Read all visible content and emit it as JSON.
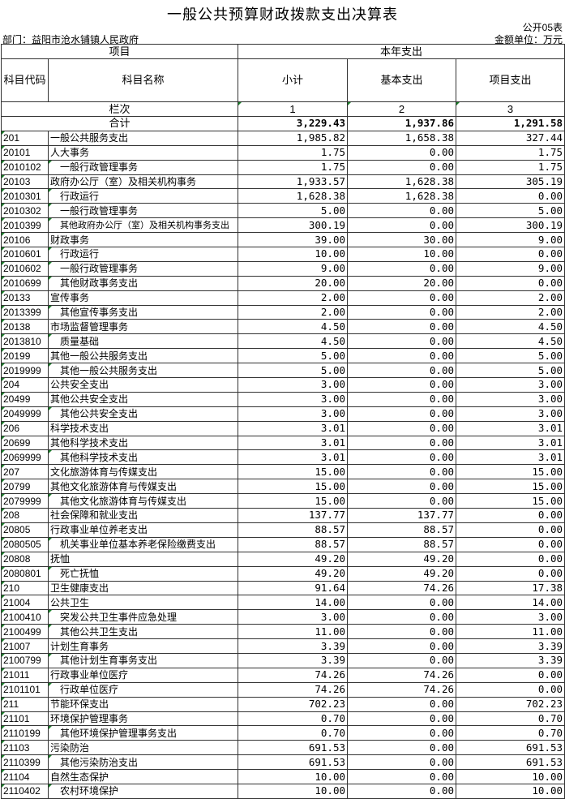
{
  "title": "一般公共预算财政拨款支出决算表",
  "form_no": "公开05表",
  "department": "部门：益阳市沧水铺镇人民政府",
  "unit": "金额单位：万元",
  "header": {
    "item": "项目",
    "current_year": "本年支出",
    "code": "科目代码",
    "name": "科目名称",
    "subtotal": "小计",
    "basic": "基本支出",
    "project": "项目支出",
    "column_label": "栏次",
    "col1": "1",
    "col2": "2",
    "col3": "3"
  },
  "total": {
    "label": "合计",
    "subtotal": "3,229.43",
    "basic": "1,937.86",
    "project": "1,291.58"
  },
  "rows": [
    [
      "201",
      "一般公共服务支出",
      "1,985.82",
      "1,658.38",
      "327.44"
    ],
    [
      "20101",
      "人大事务",
      "1.75",
      "0.00",
      "1.75"
    ],
    [
      "2010102",
      "一般行政管理事务",
      "1.75",
      "0.00",
      "1.75"
    ],
    [
      "20103",
      "政府办公厅（室）及相关机构事务",
      "1,933.57",
      "1,628.38",
      "305.19"
    ],
    [
      "2010301",
      "行政运行",
      "1,628.38",
      "1,628.38",
      "0.00"
    ],
    [
      "2010302",
      "一般行政管理事务",
      "5.00",
      "0.00",
      "5.00"
    ],
    [
      "2010399",
      "其他政府办公厅（室）及相关机构事务支出",
      "300.19",
      "0.00",
      "300.19"
    ],
    [
      "20106",
      "财政事务",
      "39.00",
      "30.00",
      "9.00"
    ],
    [
      "2010601",
      "行政运行",
      "10.00",
      "10.00",
      "0.00"
    ],
    [
      "2010602",
      "一般行政管理事务",
      "9.00",
      "0.00",
      "9.00"
    ],
    [
      "2010699",
      "其他财政事务支出",
      "20.00",
      "20.00",
      "0.00"
    ],
    [
      "20133",
      "宣传事务",
      "2.00",
      "0.00",
      "2.00"
    ],
    [
      "2013399",
      "其他宣传事务支出",
      "2.00",
      "0.00",
      "2.00"
    ],
    [
      "20138",
      "市场监督管理事务",
      "4.50",
      "0.00",
      "4.50"
    ],
    [
      "2013810",
      "质量基础",
      "4.50",
      "0.00",
      "4.50"
    ],
    [
      "20199",
      "其他一般公共服务支出",
      "5.00",
      "0.00",
      "5.00"
    ],
    [
      "2019999",
      "其他一般公共服务支出",
      "5.00",
      "0.00",
      "5.00"
    ],
    [
      "204",
      "公共安全支出",
      "3.00",
      "0.00",
      "3.00"
    ],
    [
      "20499",
      "其他公共安全支出",
      "3.00",
      "0.00",
      "3.00"
    ],
    [
      "2049999",
      "其他公共安全支出",
      "3.00",
      "0.00",
      "3.00"
    ],
    [
      "206",
      "科学技术支出",
      "3.01",
      "0.00",
      "3.01"
    ],
    [
      "20699",
      "其他科学技术支出",
      "3.01",
      "0.00",
      "3.01"
    ],
    [
      "2069999",
      "其他科学技术支出",
      "3.01",
      "0.00",
      "3.01"
    ],
    [
      "207",
      "文化旅游体育与传媒支出",
      "15.00",
      "0.00",
      "15.00"
    ],
    [
      "20799",
      "其他文化旅游体育与传媒支出",
      "15.00",
      "0.00",
      "15.00"
    ],
    [
      "2079999",
      "其他文化旅游体育与传媒支出",
      "15.00",
      "0.00",
      "15.00"
    ],
    [
      "208",
      "社会保障和就业支出",
      "137.77",
      "137.77",
      "0.00"
    ],
    [
      "20805",
      "行政事业单位养老支出",
      "88.57",
      "88.57",
      "0.00"
    ],
    [
      "2080505",
      "机关事业单位基本养老保险缴费支出",
      "88.57",
      "88.57",
      "0.00"
    ],
    [
      "20808",
      "抚恤",
      "49.20",
      "49.20",
      "0.00"
    ],
    [
      "2080801",
      "死亡抚恤",
      "49.20",
      "49.20",
      "0.00"
    ],
    [
      "210",
      "卫生健康支出",
      "91.64",
      "74.26",
      "17.38"
    ],
    [
      "21004",
      "公共卫生",
      "14.00",
      "0.00",
      "14.00"
    ],
    [
      "2100410",
      "突发公共卫生事件应急处理",
      "3.00",
      "0.00",
      "3.00"
    ],
    [
      "2100499",
      "其他公共卫生支出",
      "11.00",
      "0.00",
      "11.00"
    ],
    [
      "21007",
      "计划生育事务",
      "3.39",
      "0.00",
      "3.39"
    ],
    [
      "2100799",
      "其他计划生育事务支出",
      "3.39",
      "0.00",
      "3.39"
    ],
    [
      "21011",
      "行政事业单位医疗",
      "74.26",
      "74.26",
      "0.00"
    ],
    [
      "2101101",
      "行政单位医疗",
      "74.26",
      "74.26",
      "0.00"
    ],
    [
      "211",
      "节能环保支出",
      "702.23",
      "0.00",
      "702.23"
    ],
    [
      "21101",
      "环境保护管理事务",
      "0.70",
      "0.00",
      "0.70"
    ],
    [
      "2110199",
      "其他环境保护管理事务支出",
      "0.70",
      "0.00",
      "0.70"
    ],
    [
      "21103",
      "污染防治",
      "691.53",
      "0.00",
      "691.53"
    ],
    [
      "2110399",
      "其他污染防治支出",
      "691.53",
      "0.00",
      "691.53"
    ],
    [
      "21104",
      "自然生态保护",
      "10.00",
      "0.00",
      "10.00"
    ],
    [
      "2110402",
      "农村环境保护",
      "10.00",
      "0.00",
      "10.00"
    ]
  ]
}
